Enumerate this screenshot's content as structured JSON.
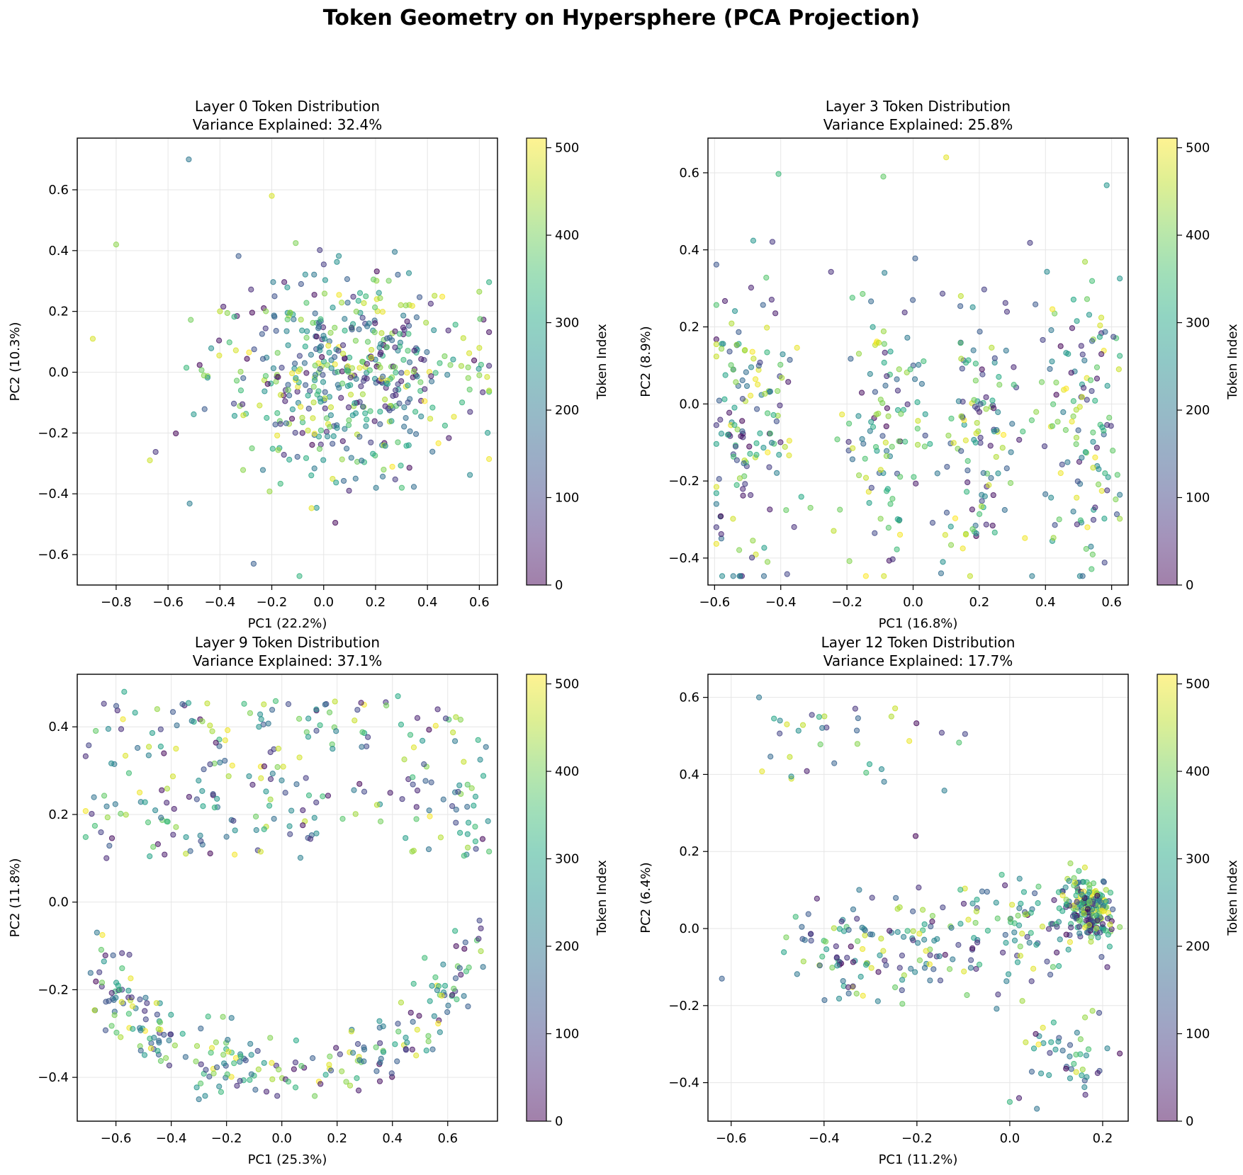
{
  "figure": {
    "title": "Token Geometry on Hypersphere (PCA Projection)",
    "colormap": "viridis",
    "marker_alpha": 0.5
  },
  "chart_data": [
    {
      "type": "scatter",
      "title": "Layer 0 Token Distribution",
      "subtitle": "Variance Explained: 32.4%",
      "xlabel": "PC1 (22.2%)",
      "ylabel": "PC2 (10.3%)",
      "xlim": [
        -0.95,
        0.67
      ],
      "ylim": [
        -0.7,
        0.77
      ],
      "xticks": [
        -0.8,
        -0.6,
        -0.4,
        -0.2,
        0.0,
        0.2,
        0.4,
        0.6
      ],
      "yticks": [
        -0.6,
        -0.4,
        -0.2,
        0.0,
        0.2,
        0.4,
        0.6
      ],
      "grid": true,
      "colorbar": {
        "label": "Token Index",
        "range": [
          0,
          511
        ],
        "ticks": [
          0,
          100,
          200,
          300,
          400,
          500
        ]
      },
      "num_points": 512,
      "point_shape": "gaussian-blob",
      "points_sample": [
        {
          "x": -0.89,
          "y": 0.11,
          "token": 480
        },
        {
          "x": -0.8,
          "y": 0.42,
          "token": 420
        },
        {
          "x": -0.52,
          "y": 0.7,
          "token": 200
        },
        {
          "x": -0.2,
          "y": 0.58,
          "token": 480
        },
        {
          "x": -0.27,
          "y": -0.63,
          "token": 150
        },
        {
          "x": 0.6,
          "y": 0.08,
          "token": 470
        },
        {
          "x": 0.6,
          "y": -0.01,
          "token": 420
        },
        {
          "x": -0.67,
          "y": -0.29,
          "token": 470
        }
      ]
    },
    {
      "type": "scatter",
      "title": "Layer 3 Token Distribution",
      "subtitle": "Variance Explained: 25.8%",
      "xlabel": "PC1 (16.8%)",
      "ylabel": "PC2 (8.9%)",
      "xlim": [
        -0.62,
        0.65
      ],
      "ylim": [
        -0.47,
        0.69
      ],
      "xticks": [
        -0.6,
        -0.4,
        -0.2,
        0.0,
        0.2,
        0.4,
        0.6
      ],
      "yticks": [
        -0.4,
        -0.2,
        0.0,
        0.2,
        0.4,
        0.6
      ],
      "grid": true,
      "colorbar": {
        "label": "Token Index",
        "range": [
          0,
          511
        ],
        "ticks": [
          0,
          100,
          200,
          300,
          400,
          500
        ]
      },
      "num_points": 512,
      "point_shape": "vertical-bands",
      "band_centers": [
        -0.5,
        -0.1,
        0.2,
        0.5
      ],
      "points_sample": [
        {
          "x": 0.1,
          "y": 0.64,
          "token": 490
        },
        {
          "x": -0.09,
          "y": 0.59,
          "token": 380
        },
        {
          "x": -0.44,
          "y": -0.41,
          "token": 420
        },
        {
          "x": 0.09,
          "y": -0.41,
          "token": 250
        },
        {
          "x": 0.58,
          "y": -0.18,
          "token": 330
        },
        {
          "x": -0.56,
          "y": -0.08,
          "token": 310
        }
      ]
    },
    {
      "type": "scatter",
      "title": "Layer 9 Token Distribution",
      "subtitle": "Variance Explained: 37.1%",
      "xlabel": "PC1 (25.3%)",
      "ylabel": "PC2 (11.8%)",
      "xlim": [
        -0.74,
        0.78
      ],
      "ylim": [
        -0.5,
        0.52
      ],
      "xticks": [
        -0.6,
        -0.4,
        -0.2,
        0.0,
        0.2,
        0.4,
        0.6
      ],
      "yticks": [
        -0.4,
        -0.2,
        0.0,
        0.2,
        0.4
      ],
      "grid": true,
      "colorbar": {
        "label": "Token Index",
        "range": [
          0,
          511
        ],
        "ticks": [
          0,
          100,
          200,
          300,
          400,
          500
        ]
      },
      "num_points": 512,
      "point_shape": "upper-columns-lower-arc",
      "points_sample": [
        {
          "x": -0.57,
          "y": 0.48,
          "token": 300
        },
        {
          "x": 0.42,
          "y": 0.47,
          "token": 310
        },
        {
          "x": -0.3,
          "y": -0.45,
          "token": 200
        },
        {
          "x": 0.72,
          "y": -0.06,
          "token": 60
        },
        {
          "x": -0.66,
          "y": -0.16,
          "token": 90
        },
        {
          "x": 0.71,
          "y": 0.37,
          "token": 320
        }
      ]
    },
    {
      "type": "scatter",
      "title": "Layer 12 Token Distribution",
      "subtitle": "Variance Explained: 17.7%",
      "xlabel": "PC1 (11.2%)",
      "ylabel": "PC2 (6.4%)",
      "xlim": [
        -0.65,
        0.255
      ],
      "ylim": [
        -0.5,
        0.66
      ],
      "xticks": [
        -0.6,
        -0.4,
        -0.2,
        0.0,
        0.2
      ],
      "yticks": [
        -0.4,
        -0.2,
        0.0,
        0.2,
        0.4,
        0.6
      ],
      "grid": true,
      "colorbar": {
        "label": "Token Index",
        "range": [
          0,
          511
        ],
        "ticks": [
          0,
          100,
          200,
          300,
          400,
          500
        ]
      },
      "num_points": 512,
      "point_shape": "dense-cluster-with-tail",
      "cluster_center": [
        0.18,
        0.05
      ],
      "points_sample": [
        {
          "x": -0.54,
          "y": 0.6,
          "token": 200
        },
        {
          "x": -0.48,
          "y": 0.53,
          "token": 480
        },
        {
          "x": -0.62,
          "y": -0.13,
          "token": 150
        },
        {
          "x": 0.0,
          "y": -0.45,
          "token": 330
        },
        {
          "x": 0.02,
          "y": -0.44,
          "token": 40
        },
        {
          "x": 0.21,
          "y": -0.1,
          "token": 40
        }
      ]
    }
  ]
}
